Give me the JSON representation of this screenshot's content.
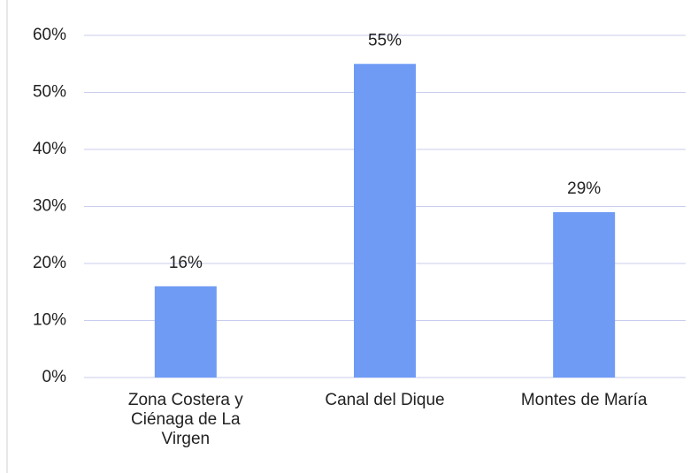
{
  "chart_data": {
    "type": "bar",
    "categories": [
      "Zona Costera y Ciénaga de La Virgen",
      "Canal del Dique",
      "Montes de María"
    ],
    "values": [
      16,
      55,
      29
    ],
    "value_labels": [
      "16%",
      "55%",
      "29%"
    ],
    "color": "#6f9bf5",
    "ylim": [
      0,
      60
    ],
    "yticks": [
      {
        "value": 0,
        "label": "0%"
      },
      {
        "value": 10,
        "label": "10%"
      },
      {
        "value": 20,
        "label": "20%"
      },
      {
        "value": 30,
        "label": "30%"
      },
      {
        "value": 40,
        "label": "40%"
      },
      {
        "value": 50,
        "label": "50%"
      },
      {
        "value": 60,
        "label": "60%"
      }
    ],
    "grid": true
  }
}
